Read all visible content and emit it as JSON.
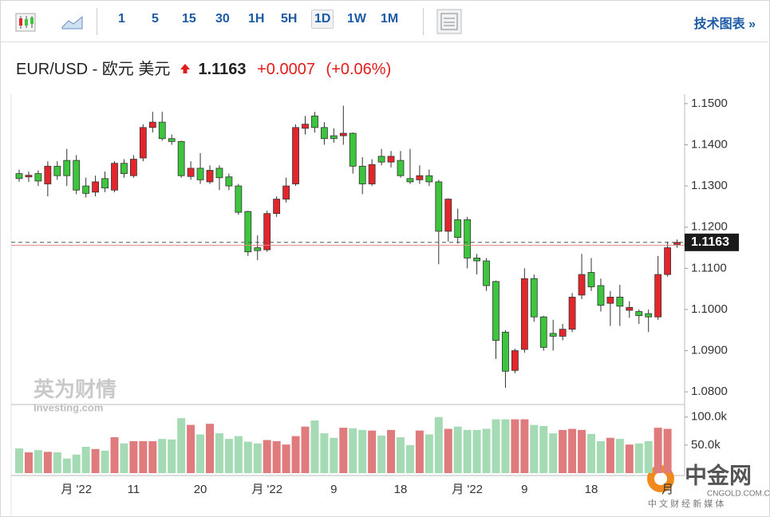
{
  "toolbar": {
    "intervals": [
      "1",
      "5",
      "15",
      "30",
      "1H",
      "5H",
      "1D",
      "1W",
      "1M"
    ],
    "tech_link": "技术图表 »"
  },
  "header": {
    "symbol": "EUR/USD - 欧元 美元",
    "price": "1.1163",
    "change": "+0.0007",
    "change_pct": "(+0.06%)"
  },
  "watermarks": {
    "brand_cn": "英为财情",
    "brand_en": "Investing.com",
    "logo": "中金网",
    "logo_url": "CNGOLD.COM.CN",
    "logo_tag": "中 文 财 经 新 媒 体"
  },
  "chart_data": {
    "type": "candlestick",
    "categories": [
      null,
      null,
      null,
      null,
      null,
      null,
      "月 '22",
      null,
      null,
      null,
      null,
      null,
      "11",
      null,
      null,
      null,
      null,
      null,
      null,
      "20",
      null,
      null,
      null,
      null,
      null,
      null,
      "月 '22",
      null,
      null,
      null,
      null,
      null,
      null,
      "9",
      null,
      null,
      null,
      null,
      null,
      null,
      "18",
      null,
      null,
      null,
      null,
      null,
      null,
      "月 '22",
      null,
      null,
      null,
      null,
      null,
      "9",
      null,
      null,
      null,
      null,
      null,
      null,
      "18",
      null,
      null,
      null,
      null,
      null,
      null,
      null,
      "月",
      null
    ],
    "open": [
      1.133,
      1.1322,
      1.133,
      1.1305,
      1.1348,
      1.1362,
      1.1362,
      1.13,
      1.1285,
      1.1318,
      1.129,
      1.1355,
      1.1325,
      1.1368,
      1.1442,
      1.1455,
      1.1415,
      1.1408,
      1.1323,
      1.1343,
      1.131,
      1.1343,
      1.1322,
      1.13,
      1.1238,
      1.115,
      1.1145,
      1.1233,
      1.1268,
      1.1305,
      1.144,
      1.147,
      1.1442,
      1.1422,
      1.1422,
      1.1428,
      1.1348,
      1.1305,
      1.1372,
      1.1358,
      1.1362,
      1.1318,
      1.1315,
      1.1325,
      1.131,
      1.119,
      1.1218,
      1.1218,
      1.1125,
      1.1118,
      1.1068,
      1.0945,
      1.0852,
      1.0903,
      1.1075,
      1.0982,
      1.0942,
      1.0935,
      1.0952,
      1.1035,
      1.109,
      1.1058,
      1.1015,
      1.103,
      1.0998,
      1.0995,
      1.099,
      1.0982,
      1.1085,
      1.1158
    ],
    "high": [
      1.134,
      1.1335,
      1.1338,
      1.136,
      1.136,
      1.139,
      1.1375,
      1.132,
      1.1325,
      1.1335,
      1.136,
      1.1365,
      1.1375,
      1.145,
      1.148,
      1.148,
      1.1425,
      1.141,
      1.136,
      1.138,
      1.135,
      1.135,
      1.133,
      1.1305,
      1.124,
      1.118,
      1.124,
      1.1275,
      1.132,
      1.145,
      1.147,
      1.148,
      1.1455,
      1.144,
      1.1495,
      1.143,
      1.137,
      1.1365,
      1.139,
      1.1385,
      1.1385,
      1.139,
      1.135,
      1.134,
      1.1315,
      1.127,
      1.1245,
      1.1225,
      1.1135,
      1.1125,
      1.107,
      1.095,
      1.0905,
      1.11,
      1.1085,
      1.0985,
      1.0975,
      1.0965,
      1.104,
      1.1135,
      1.1125,
      1.1075,
      1.1045,
      1.106,
      1.102,
      1.1,
      1.1,
      1.113,
      1.1165,
      1.117
    ],
    "low": [
      1.131,
      1.131,
      1.13,
      1.1275,
      1.1315,
      1.13,
      1.128,
      1.1272,
      1.1275,
      1.1285,
      1.1285,
      1.132,
      1.132,
      1.136,
      1.143,
      1.141,
      1.14,
      1.132,
      1.1315,
      1.1305,
      1.1305,
      1.129,
      1.129,
      1.123,
      1.113,
      1.112,
      1.114,
      1.1225,
      1.126,
      1.13,
      1.1425,
      1.143,
      1.14,
      1.1405,
      1.14,
      1.133,
      1.128,
      1.13,
      1.135,
      1.1345,
      1.132,
      1.1305,
      1.1305,
      1.13,
      1.111,
      1.1165,
      1.116,
      1.11,
      1.1085,
      1.1045,
      1.088,
      1.081,
      1.0845,
      1.0895,
      1.097,
      1.09,
      1.09,
      1.0925,
      1.0945,
      1.1025,
      1.1045,
      1.0995,
      1.096,
      1.096,
      1.098,
      1.0965,
      1.0945,
      1.0975,
      1.108,
      1.115
    ],
    "close": [
      1.1318,
      1.1326,
      1.1312,
      1.1348,
      1.1325,
      1.1325,
      1.129,
      1.1282,
      1.131,
      1.1295,
      1.1355,
      1.133,
      1.1365,
      1.1442,
      1.1455,
      1.1415,
      1.1408,
      1.1325,
      1.1343,
      1.1315,
      1.1338,
      1.132,
      1.13,
      1.1236,
      1.114,
      1.1143,
      1.1233,
      1.1268,
      1.13,
      1.1442,
      1.145,
      1.1442,
      1.1415,
      1.1415,
      1.1428,
      1.1348,
      1.1305,
      1.1352,
      1.1358,
      1.1372,
      1.1325,
      1.131,
      1.1325,
      1.131,
      1.119,
      1.1268,
      1.1175,
      1.1125,
      1.1118,
      1.1058,
      1.0925,
      1.085,
      1.09,
      1.1075,
      1.0982,
      1.0908,
      1.0935,
      1.0952,
      1.103,
      1.1085,
      1.1055,
      1.101,
      1.103,
      1.1008,
      1.1005,
      1.0985,
      1.0982,
      1.1085,
      1.115,
      1.1163
    ],
    "volume": [
      44000,
      37000,
      41000,
      38000,
      37000,
      26000,
      33000,
      47000,
      43000,
      40000,
      64000,
      53000,
      57000,
      57000,
      57000,
      61000,
      60000,
      98000,
      86000,
      69000,
      88000,
      71000,
      61000,
      66000,
      56000,
      53000,
      59000,
      57000,
      51000,
      66000,
      83000,
      94000,
      71000,
      63000,
      81000,
      80000,
      77000,
      76000,
      67000,
      77000,
      64000,
      50000,
      76000,
      69000,
      100000,
      79000,
      83000,
      77000,
      77000,
      79000,
      96000,
      96000,
      96000,
      96000,
      86000,
      84000,
      71000,
      77000,
      79000,
      77000,
      70000,
      57000,
      63000,
      61000,
      51000,
      53000,
      57000,
      81000,
      79000,
      0
    ],
    "up_color": "#e3262b",
    "down_color": "#3dc53d",
    "up_volume_color": "#e07b7d",
    "down_volume_color": "#a4dab4",
    "ylim": [
      1.0777,
      1.1523
    ],
    "yticks": [
      {
        "value": 1.08,
        "label": "1.0800"
      },
      {
        "value": 1.09,
        "label": "1.0900"
      },
      {
        "value": 1.1,
        "label": "1.1000"
      },
      {
        "value": 1.11,
        "label": "1.1100"
      },
      {
        "value": 1.12,
        "label": "1.1200"
      },
      {
        "value": 1.13,
        "label": "1.1300"
      },
      {
        "value": 1.14,
        "label": "1.1400"
      },
      {
        "value": 1.15,
        "label": "1.1500"
      }
    ],
    "y2lim": [
      0,
      121000
    ],
    "y2ticks": [
      {
        "value": 50000,
        "label": "50.0k"
      },
      {
        "value": 100000,
        "label": "100.0k"
      }
    ],
    "last_price": {
      "value": 1.1163,
      "label": "1.1163"
    },
    "prev_close": 1.1156
  }
}
